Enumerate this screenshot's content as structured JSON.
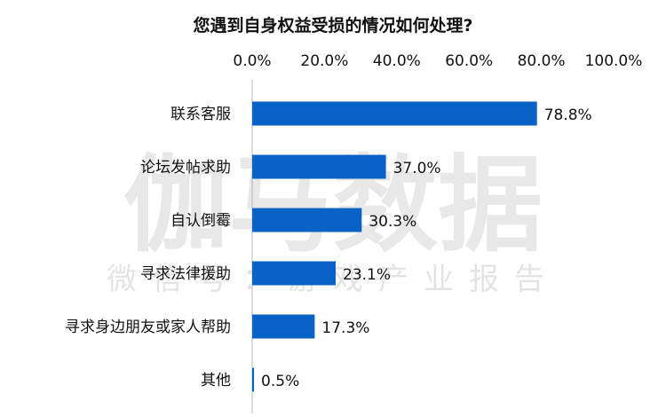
{
  "chart_data": {
    "type": "bar",
    "orientation": "horizontal",
    "title": "您遇到自身权益受损的情况如何处理?",
    "categories": [
      "联系客服",
      "论坛发帖求助",
      "自认倒霉",
      "寻求法律援助",
      "寻求身边朋友或家人帮助",
      "其他"
    ],
    "values": [
      78.8,
      37.0,
      30.3,
      23.1,
      17.3,
      0.5
    ],
    "value_labels": [
      "78.8%",
      "37.0%",
      "30.3%",
      "23.1%",
      "17.3%",
      "0.5%"
    ],
    "x_ticks": [
      "0.0%",
      "20.0%",
      "40.0%",
      "60.0%",
      "80.0%",
      "100.0%"
    ],
    "xlim": [
      0,
      100
    ],
    "x_axis_position": "top",
    "grid": false,
    "bar_color": "#0b62c5"
  },
  "watermark": {
    "main": "伽马数据",
    "sub": "微信号：游戏产业报告"
  }
}
